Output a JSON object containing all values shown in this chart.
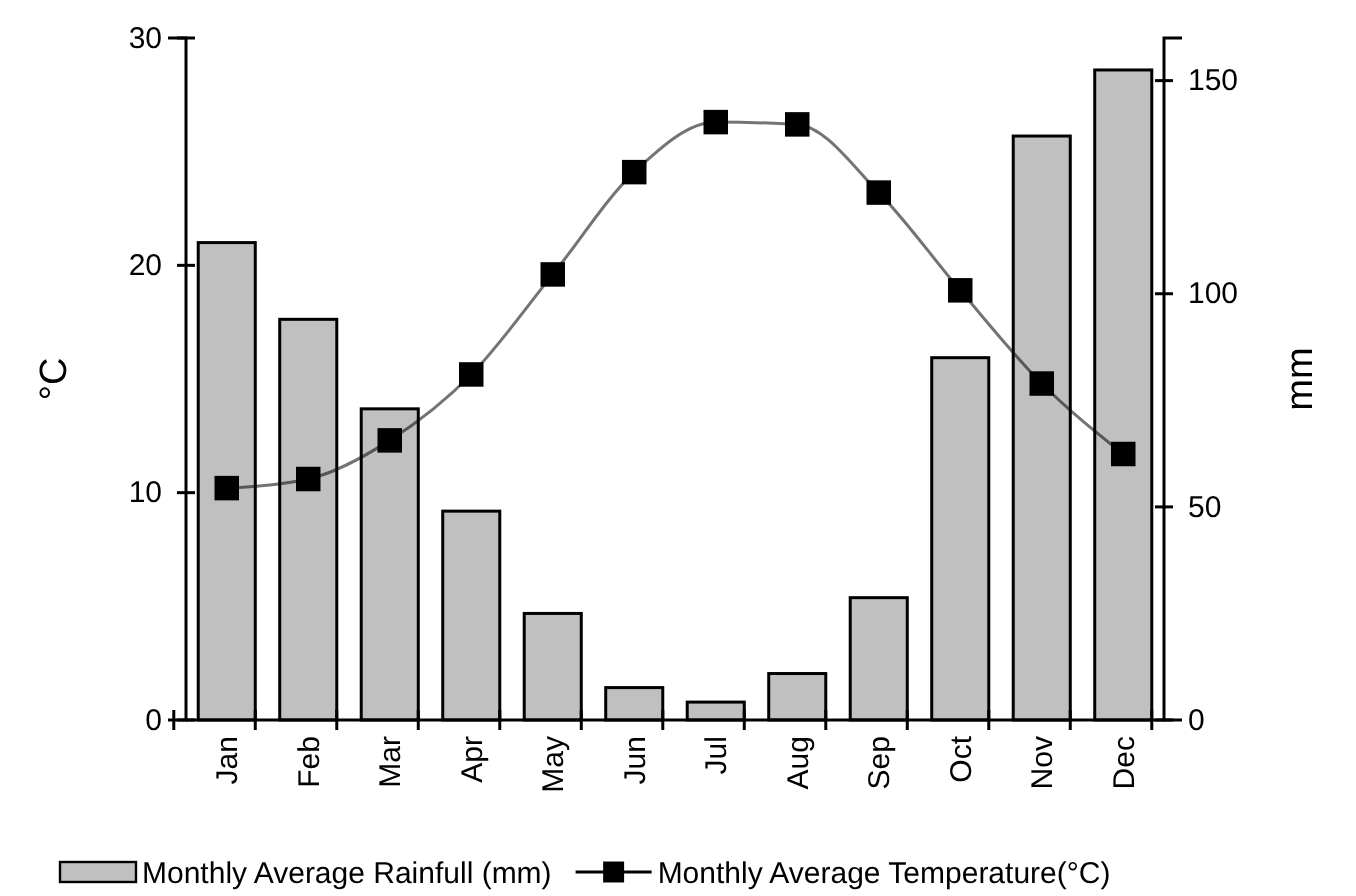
{
  "chart_data": {
    "type": "bar",
    "categories": [
      "Jan",
      "Feb",
      "Mar",
      "Apr",
      "May",
      "Jun",
      "Jul",
      "Aug",
      "Sep",
      "Oct",
      "Nov",
      "Dec"
    ],
    "series": [
      {
        "name": "Monthly Average Rainfull (mm)",
        "axis": "y2",
        "color": "#c0c0c0",
        "values": [
          112,
          94,
          73,
          49,
          25,
          7.6,
          4.2,
          10.9,
          28.7,
          85,
          137,
          152.5
        ]
      },
      {
        "name": "Monthly Average Temperature(°C)",
        "type": "line",
        "color": "#000000",
        "values": [
          10.2,
          10.6,
          12.3,
          15.2,
          19.6,
          24.1,
          26.3,
          26.2,
          23.2,
          18.9,
          14.8,
          11.7
        ]
      }
    ],
    "ylabel": "°C",
    "y2label": "mm",
    "ylim": [
      0,
      30
    ],
    "yticks": [
      0,
      10,
      20,
      30
    ],
    "y2lim": [
      0,
      160
    ],
    "y2ticks": [
      0,
      50,
      100,
      150
    ],
    "legend": "bottom",
    "marker": "square",
    "grid": false
  }
}
